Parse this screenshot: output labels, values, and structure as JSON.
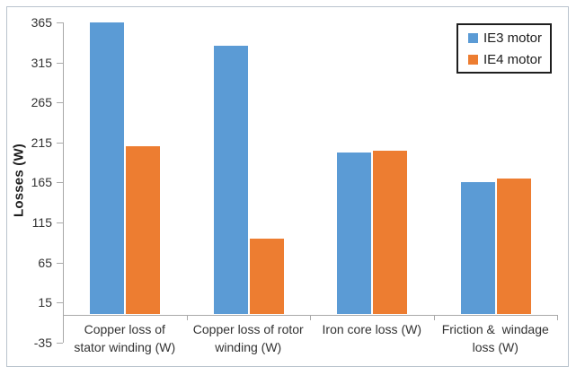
{
  "chart_data": {
    "type": "bar",
    "title": "",
    "xlabel": "",
    "ylabel": "Losses (W)",
    "ylim": [
      -35,
      365
    ],
    "yticks": [
      365,
      315,
      265,
      215,
      165,
      115,
      65,
      15,
      -35
    ],
    "grid": false,
    "legend_position": "top-right",
    "categories": [
      "Copper loss of stator winding (W)",
      "Copper loss of rotor winding (W)",
      "Iron core loss (W)",
      "Friction &  windage loss (W)"
    ],
    "category_label_lines": [
      [
        "Copper loss of",
        "stator winding (W)"
      ],
      [
        "Copper loss of rotor",
        "winding (W)"
      ],
      [
        "Iron core loss (W)"
      ],
      [
        "Friction &  windage",
        "loss (W)"
      ]
    ],
    "series": [
      {
        "name": "IE3 motor",
        "color": "#5B9BD5",
        "values": [
          365,
          336,
          202,
          165
        ]
      },
      {
        "name": "IE4 motor",
        "color": "#ED7D31",
        "values": [
          210,
          95,
          205,
          170
        ]
      }
    ]
  },
  "colors": {
    "background": "#FFFFFF",
    "axis_line": "#A9A9A9",
    "text": "#2E2E2E",
    "frame_border": "#B9C3CD",
    "legend_border": "#1F1F1F"
  }
}
